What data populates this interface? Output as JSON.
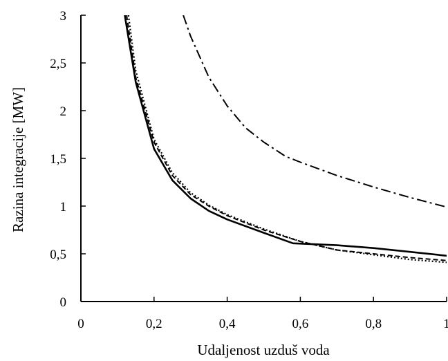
{
  "chart_data": {
    "type": "line",
    "title": "",
    "xlabel": "Udaljenost uzduš voda",
    "ylabel": "Razina integracije [MW]",
    "xlim": [
      0,
      1
    ],
    "ylim": [
      0,
      3
    ],
    "x_ticks": [
      "0",
      "0,2",
      "0,4",
      "0,6",
      "0,8",
      "1"
    ],
    "y_ticks": [
      "0",
      "0,5",
      "1",
      "1,5",
      "2",
      "2,5",
      "3"
    ],
    "grid": false,
    "legend": "none",
    "series": [
      {
        "style": "solid",
        "color": "#000000",
        "points": [
          [
            0.12,
            3.0
          ],
          [
            0.15,
            2.3
          ],
          [
            0.2,
            1.6
          ],
          [
            0.25,
            1.27
          ],
          [
            0.3,
            1.08
          ],
          [
            0.35,
            0.95
          ],
          [
            0.4,
            0.86
          ],
          [
            0.5,
            0.72
          ],
          [
            0.58,
            0.61
          ],
          [
            0.7,
            0.59
          ],
          [
            0.8,
            0.56
          ],
          [
            0.9,
            0.52
          ],
          [
            1.0,
            0.48
          ]
        ]
      },
      {
        "style": "dashed",
        "color": "#000000",
        "points": [
          [
            0.125,
            3.0
          ],
          [
            0.15,
            2.35
          ],
          [
            0.2,
            1.67
          ],
          [
            0.25,
            1.32
          ],
          [
            0.3,
            1.12
          ],
          [
            0.35,
            1.0
          ],
          [
            0.4,
            0.9
          ],
          [
            0.5,
            0.75
          ],
          [
            0.6,
            0.63
          ],
          [
            0.7,
            0.54
          ],
          [
            0.8,
            0.5
          ],
          [
            0.9,
            0.46
          ],
          [
            1.0,
            0.43
          ]
        ]
      },
      {
        "style": "dotted",
        "color": "#000000",
        "points": [
          [
            0.13,
            3.0
          ],
          [
            0.15,
            2.42
          ],
          [
            0.2,
            1.7
          ],
          [
            0.25,
            1.35
          ],
          [
            0.3,
            1.14
          ],
          [
            0.35,
            1.01
          ],
          [
            0.4,
            0.91
          ],
          [
            0.5,
            0.76
          ],
          [
            0.6,
            0.63
          ],
          [
            0.7,
            0.54
          ],
          [
            0.8,
            0.49
          ],
          [
            0.9,
            0.44
          ],
          [
            1.0,
            0.41
          ]
        ]
      },
      {
        "style": "dashdot",
        "color": "#000000",
        "points": [
          [
            0.28,
            3.0
          ],
          [
            0.3,
            2.78
          ],
          [
            0.35,
            2.35
          ],
          [
            0.4,
            2.05
          ],
          [
            0.45,
            1.82
          ],
          [
            0.5,
            1.67
          ],
          [
            0.56,
            1.52
          ],
          [
            0.6,
            1.46
          ],
          [
            0.7,
            1.32
          ],
          [
            0.8,
            1.2
          ],
          [
            0.9,
            1.09
          ],
          [
            1.0,
            0.99
          ]
        ]
      }
    ]
  }
}
